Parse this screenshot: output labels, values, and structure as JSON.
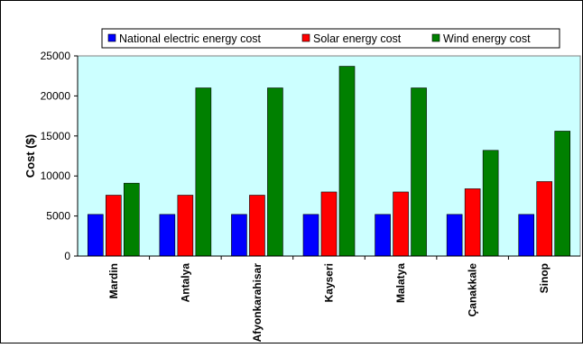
{
  "chart_data": {
    "type": "bar",
    "title": "",
    "xlabel": "",
    "ylabel": "Cost ($)",
    "ylim": [
      0,
      25000
    ],
    "yticks": [
      0,
      5000,
      10000,
      15000,
      20000,
      25000
    ],
    "categories": [
      "Mardin",
      "Antalya",
      "Afyonkarahisar",
      "Kayseri",
      "Malatya",
      "Çanakkale",
      "Sinop"
    ],
    "series": [
      {
        "name": "National electric energy cost",
        "color": "#0000ff",
        "values": [
          5200,
          5200,
          5200,
          5200,
          5200,
          5200,
          5200
        ]
      },
      {
        "name": "Solar energy cost",
        "color": "#ff0000",
        "values": [
          7600,
          7600,
          7600,
          8000,
          8000,
          8400,
          9300
        ]
      },
      {
        "name": "Wind energy cost",
        "color": "#008000",
        "values": [
          9100,
          21000,
          21000,
          23700,
          21000,
          13200,
          15600
        ]
      }
    ],
    "legend_position": "top",
    "grid": false,
    "plot_background": "#ccffff"
  }
}
